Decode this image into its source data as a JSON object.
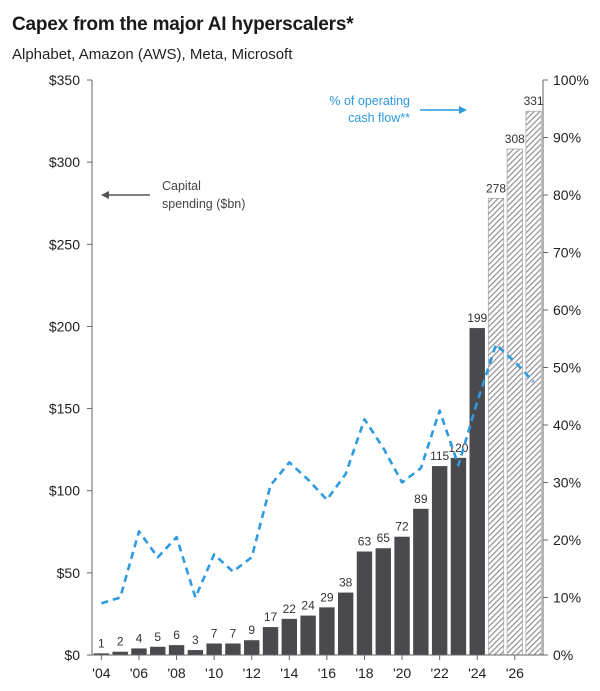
{
  "chart_data": {
    "type": "bar",
    "title": "Capex from the major AI hyperscalers*",
    "subtitle": "Alphabet, Amazon (AWS), Meta, Microsoft",
    "categories": [
      "'04",
      "'05",
      "'06",
      "'07",
      "'08",
      "'09",
      "'10",
      "'11",
      "'12",
      "'13",
      "'14",
      "'15",
      "'16",
      "'17",
      "'18",
      "'19",
      "'20",
      "'21",
      "'22",
      "'23",
      "'24",
      "'25",
      "'26",
      "'27"
    ],
    "x_tick_labels": [
      "'04",
      "'06",
      "'08",
      "'10",
      "'12",
      "'14",
      "'16",
      "'18",
      "'20",
      "'22",
      "'24",
      "'26"
    ],
    "series": [
      {
        "axis": "left",
        "values": [
          1,
          2,
          4,
          5,
          6,
          3,
          7,
          7,
          9,
          17,
          22,
          24,
          29,
          38,
          63,
          65,
          72,
          89,
          115,
          120,
          199,
          278,
          308,
          331
        ],
        "data_labels": [
          "1",
          "2",
          "4",
          "5",
          "6",
          "3",
          "7",
          "7",
          "9",
          "17",
          "22",
          "24",
          "29",
          "38",
          "63",
          "65",
          "72",
          "89",
          "115",
          "120",
          "199",
          "278",
          "308",
          "331"
        ],
        "estimate_from_index": 21,
        "color": "#4a4a4e",
        "estimate_color": "#a9a9ad"
      },
      {
        "name": "% of operating cash flow**",
        "type": "line",
        "style": "dashed",
        "axis": "right",
        "values": [
          9,
          10,
          21.5,
          17,
          20.5,
          10,
          17.5,
          14.5,
          17,
          29.5,
          33.5,
          30.5,
          27,
          31.5,
          41,
          36,
          30,
          32.5,
          42.5,
          33,
          44,
          54,
          51,
          47.5
        ],
        "color": "#2e9ae0"
      }
    ],
    "y_left": {
      "min": 0,
      "max": 350,
      "tick_labels": [
        "$0",
        "$50",
        "$100",
        "$150",
        "$200",
        "$250",
        "$300",
        "$350"
      ]
    },
    "y_right": {
      "min": 0,
      "max": 100,
      "tick_labels": [
        "0%",
        "10%",
        "20%",
        "30%",
        "40%",
        "50%",
        "60%",
        "70%",
        "80%",
        "90%",
        "100%"
      ]
    },
    "annotations": {
      "capital_line1": "Capital",
      "capital_line2": "spending ($bn)",
      "ocf_line1": "% of operating",
      "ocf_line2": "cash flow**"
    },
    "grid": false,
    "legend": "none"
  }
}
